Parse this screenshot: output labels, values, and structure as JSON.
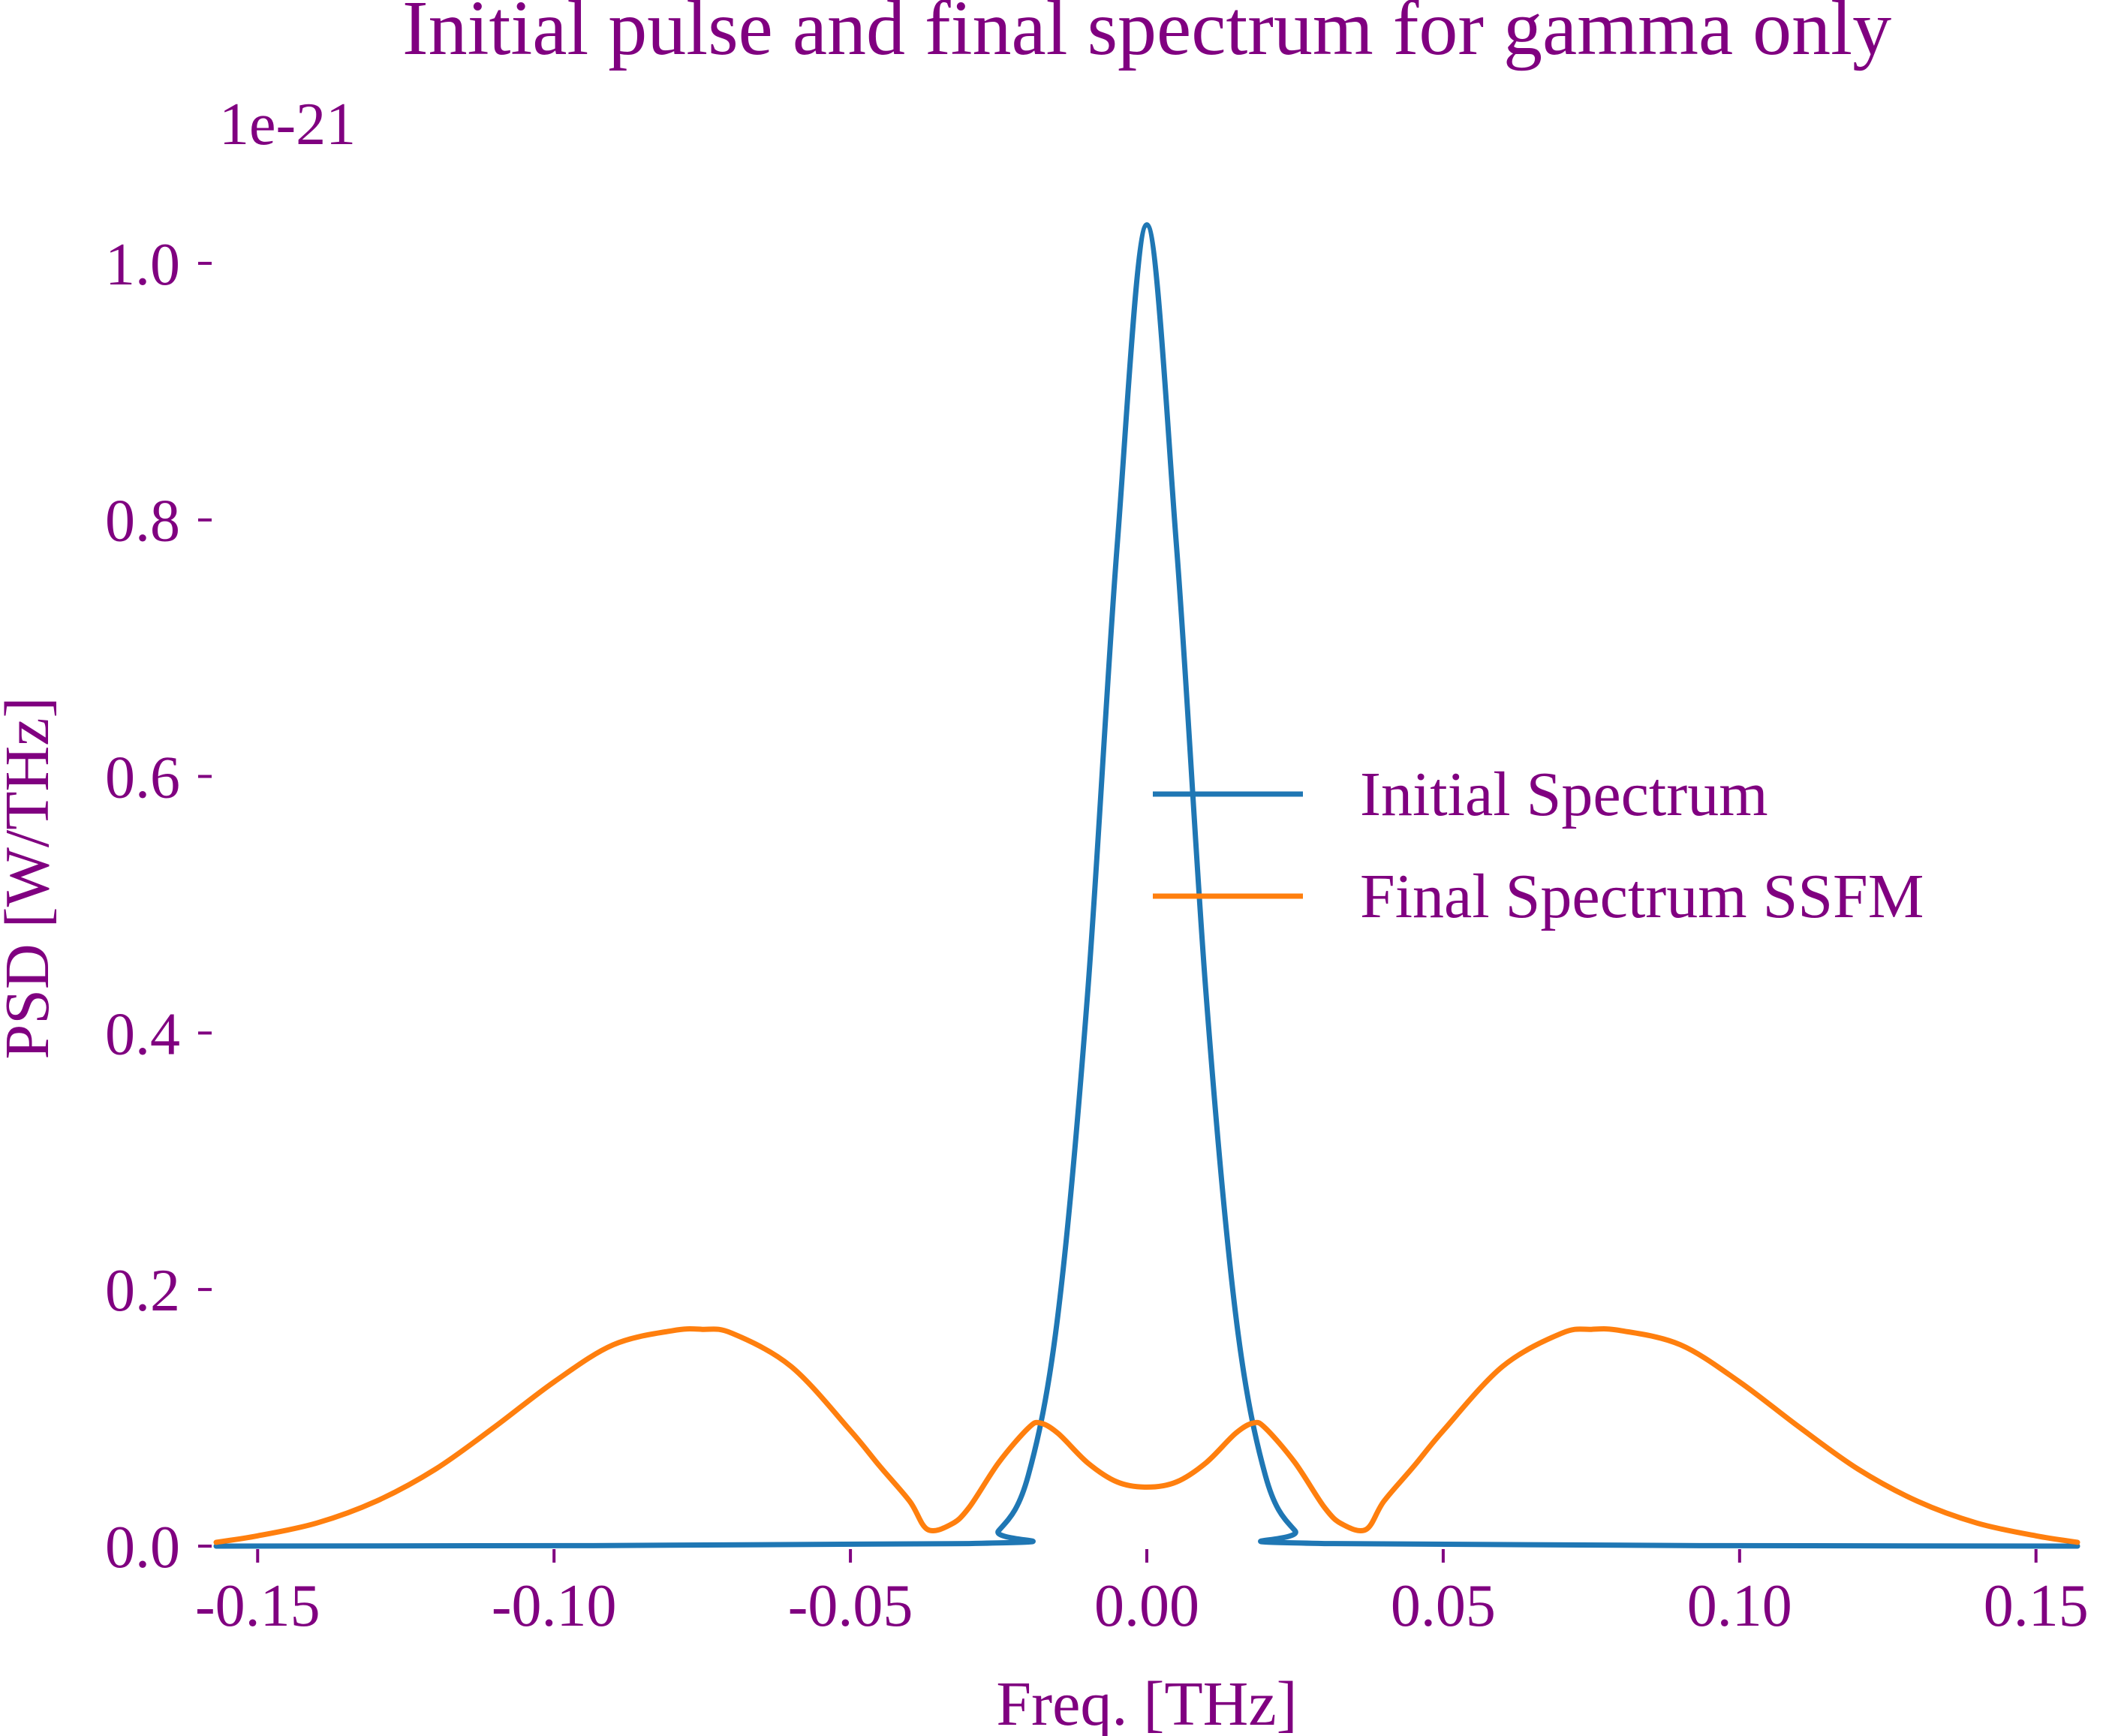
{
  "colors": {
    "text": "#800080",
    "initial": "#1f77b4",
    "final": "#ff7f0e",
    "background": "#ffffff"
  },
  "chart_data": {
    "type": "line",
    "title": "Initial pulse and final spectrum for gamma only",
    "xlabel": "Freq. [THz]",
    "ylabel": "PSD [W/THz]",
    "y_offset_label": "1e-21",
    "xlim": [
      -0.157,
      0.157
    ],
    "ylim": [
      0.0,
      1.1
    ],
    "x_ticks": [
      -0.15,
      -0.1,
      -0.05,
      0.0,
      0.05,
      0.1,
      0.15
    ],
    "x_tick_labels": [
      "-0.15",
      "-0.10",
      "-0.05",
      "0.00",
      "0.05",
      "0.10",
      "0.15"
    ],
    "y_ticks": [
      0.0,
      0.2,
      0.4,
      0.6,
      0.8,
      1.0
    ],
    "y_tick_labels": [
      "0.0",
      "0.2",
      "0.4",
      "0.6",
      "0.8",
      "1.0"
    ],
    "grid": false,
    "legend_position": "center-right",
    "series": [
      {
        "name": "Initial Spectrum",
        "color": "#1f77b4",
        "x": [
          -0.157,
          -0.03,
          -0.025,
          -0.02,
          -0.015,
          -0.01,
          -0.005,
          0.0,
          0.005,
          0.01,
          0.015,
          0.02,
          0.025,
          0.03,
          0.157
        ],
        "y": [
          0.0,
          0.002,
          0.012,
          0.055,
          0.18,
          0.43,
          0.78,
          1.03,
          0.78,
          0.43,
          0.18,
          0.055,
          0.012,
          0.002,
          0.0
        ]
      },
      {
        "name": "Final Spectrum SSFM",
        "color": "#ff7f0e",
        "x": [
          -0.157,
          -0.15,
          -0.14,
          -0.13,
          -0.12,
          -0.11,
          -0.1,
          -0.09,
          -0.08,
          -0.075,
          -0.07,
          -0.06,
          -0.05,
          -0.045,
          -0.04,
          -0.037,
          -0.033,
          -0.03,
          -0.025,
          -0.02,
          -0.018,
          -0.015,
          -0.01,
          -0.005,
          0.0,
          0.005,
          0.01,
          0.015,
          0.018,
          0.02,
          0.025,
          0.03,
          0.033,
          0.037,
          0.04,
          0.045,
          0.05,
          0.06,
          0.07,
          0.075,
          0.08,
          0.09,
          0.1,
          0.11,
          0.12,
          0.13,
          0.14,
          0.15,
          0.157
        ],
        "y": [
          0.003,
          0.008,
          0.018,
          0.035,
          0.06,
          0.093,
          0.128,
          0.157,
          0.168,
          0.169,
          0.166,
          0.14,
          0.09,
          0.062,
          0.035,
          0.013,
          0.017,
          0.03,
          0.065,
          0.092,
          0.096,
          0.088,
          0.065,
          0.05,
          0.046,
          0.05,
          0.065,
          0.088,
          0.096,
          0.092,
          0.065,
          0.03,
          0.017,
          0.013,
          0.035,
          0.062,
          0.09,
          0.14,
          0.166,
          0.169,
          0.168,
          0.157,
          0.128,
          0.093,
          0.06,
          0.035,
          0.018,
          0.008,
          0.003
        ]
      }
    ]
  }
}
